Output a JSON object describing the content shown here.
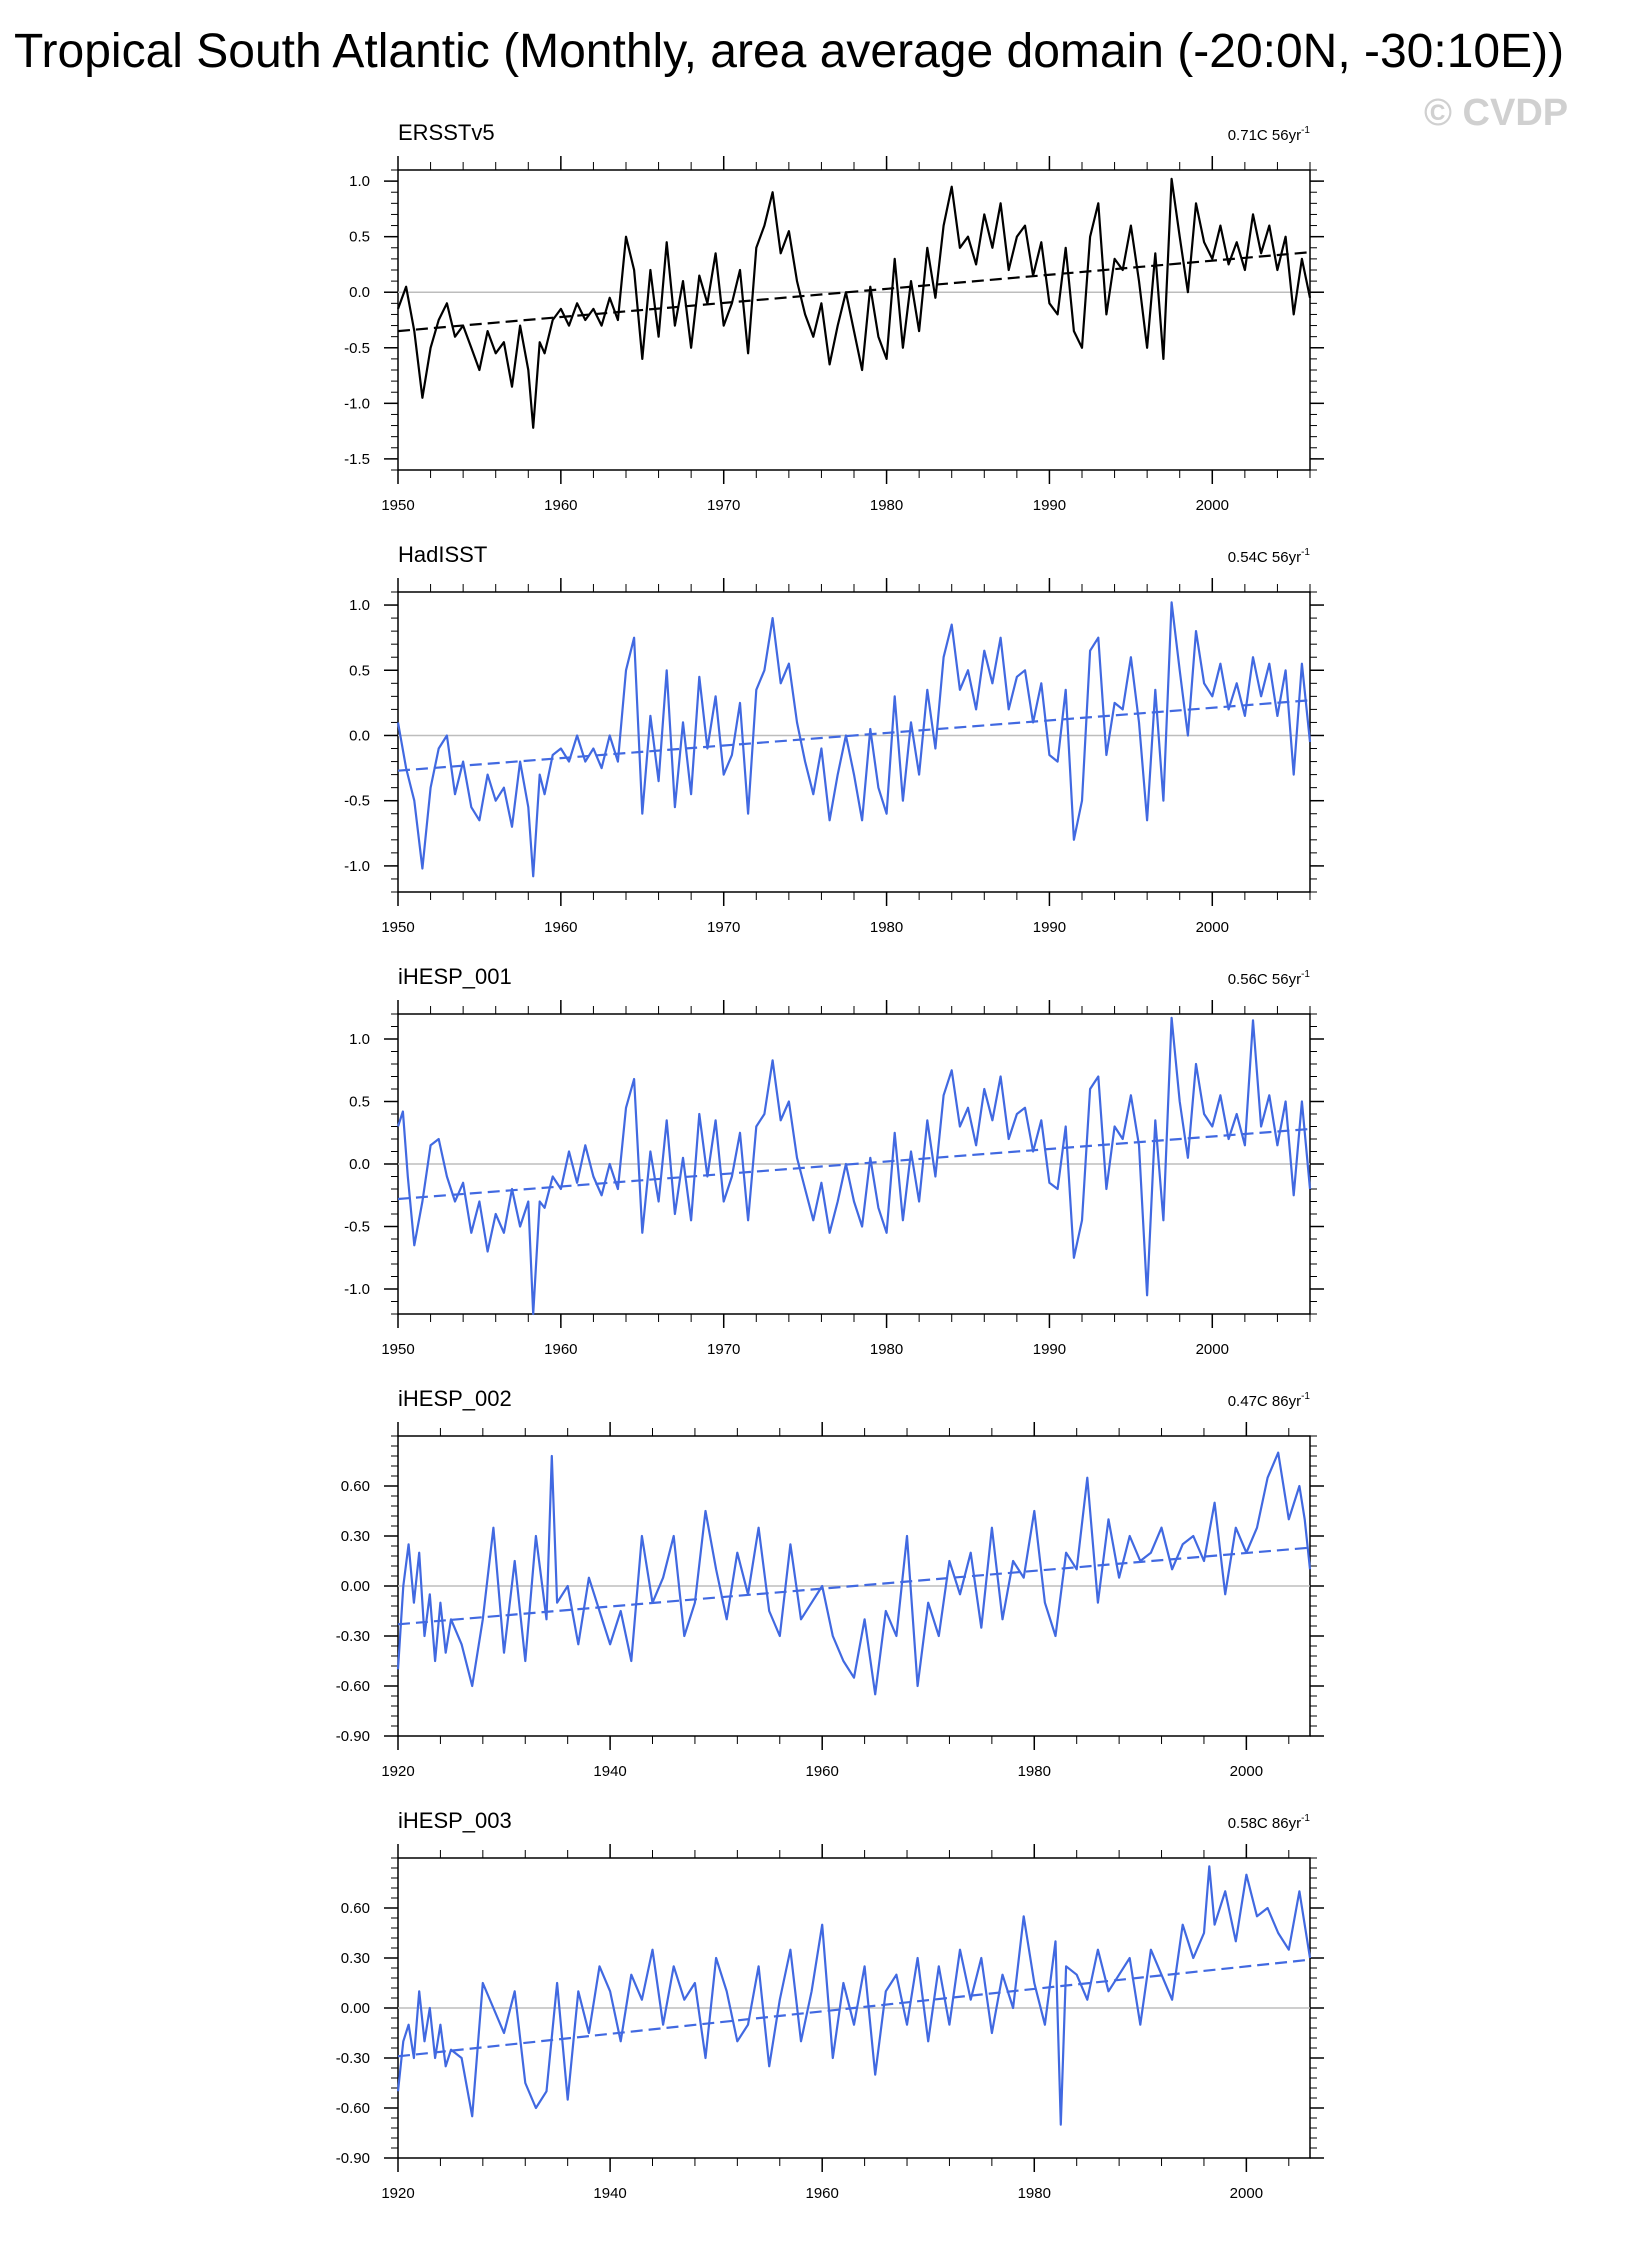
{
  "title": "Tropical South Atlantic (Monthly, area average domain (-20:0N, -30:10E))",
  "watermark": "© CVDP",
  "colors": {
    "black": "#000000",
    "blue": "#4169e1",
    "zero_line": "#bdbdbd"
  },
  "chart_data": [
    {
      "type": "line",
      "title": "ERSSTv5",
      "trend_value": "0.71C 56yr",
      "trend_exp": "-1",
      "color": "black",
      "xlim": [
        1950,
        2006
      ],
      "ylim": [
        -1.6,
        1.1
      ],
      "xticks": [
        1950,
        1960,
        1970,
        1980,
        1990,
        2000
      ],
      "yticks": [
        -1.5,
        -1.0,
        -0.5,
        0.0,
        0.5,
        1.0
      ],
      "yticklabels": [
        "-1.5",
        "-1.0",
        "-0.5",
        "0.0",
        "0.5",
        "1.0"
      ],
      "trend": [
        [
          1950,
          -0.35
        ],
        [
          2006,
          0.36
        ]
      ],
      "x": [
        1950.0,
        1950.5,
        1951.0,
        1951.5,
        1952.0,
        1952.5,
        1953.0,
        1953.5,
        1954.0,
        1954.5,
        1955.0,
        1955.5,
        1956.0,
        1956.5,
        1957.0,
        1957.5,
        1958.0,
        1958.3,
        1958.7,
        1959.0,
        1959.5,
        1960.0,
        1960.5,
        1961.0,
        1961.5,
        1962.0,
        1962.5,
        1963.0,
        1963.5,
        1964.0,
        1964.5,
        1965.0,
        1965.5,
        1966.0,
        1966.5,
        1967.0,
        1967.5,
        1968.0,
        1968.5,
        1969.0,
        1969.5,
        1970.0,
        1970.5,
        1971.0,
        1971.5,
        1972.0,
        1972.5,
        1973.0,
        1973.5,
        1974.0,
        1974.5,
        1975.0,
        1975.5,
        1976.0,
        1976.5,
        1977.0,
        1977.5,
        1978.0,
        1978.5,
        1979.0,
        1979.5,
        1980.0,
        1980.5,
        1981.0,
        1981.5,
        1982.0,
        1982.5,
        1983.0,
        1983.5,
        1984.0,
        1984.5,
        1985.0,
        1985.5,
        1986.0,
        1986.5,
        1987.0,
        1987.5,
        1988.0,
        1988.5,
        1989.0,
        1989.5,
        1990.0,
        1990.5,
        1991.0,
        1991.5,
        1992.0,
        1992.5,
        1993.0,
        1993.5,
        1994.0,
        1994.5,
        1995.0,
        1995.5,
        1996.0,
        1996.5,
        1997.0,
        1997.5,
        1998.0,
        1998.5,
        1999.0,
        1999.5,
        2000.0,
        2000.5,
        2001.0,
        2001.5,
        2002.0,
        2002.5,
        2003.0,
        2003.5,
        2004.0,
        2004.5,
        2005.0,
        2005.5,
        2006.0
      ],
      "y": [
        -0.15,
        0.05,
        -0.35,
        -0.95,
        -0.5,
        -0.25,
        -0.1,
        -0.4,
        -0.3,
        -0.5,
        -0.7,
        -0.35,
        -0.55,
        -0.45,
        -0.85,
        -0.3,
        -0.7,
        -1.22,
        -0.45,
        -0.55,
        -0.25,
        -0.15,
        -0.3,
        -0.1,
        -0.25,
        -0.15,
        -0.3,
        -0.05,
        -0.25,
        0.5,
        0.2,
        -0.6,
        0.2,
        -0.4,
        0.45,
        -0.3,
        0.1,
        -0.5,
        0.15,
        -0.1,
        0.35,
        -0.3,
        -0.1,
        0.2,
        -0.55,
        0.4,
        0.6,
        0.9,
        0.35,
        0.55,
        0.1,
        -0.2,
        -0.4,
        -0.1,
        -0.65,
        -0.3,
        0.0,
        -0.35,
        -0.7,
        0.05,
        -0.4,
        -0.6,
        0.3,
        -0.5,
        0.1,
        -0.35,
        0.4,
        -0.05,
        0.6,
        0.95,
        0.4,
        0.5,
        0.25,
        0.7,
        0.4,
        0.8,
        0.2,
        0.5,
        0.6,
        0.15,
        0.45,
        -0.1,
        -0.2,
        0.4,
        -0.35,
        -0.5,
        0.5,
        0.8,
        -0.2,
        0.3,
        0.2,
        0.6,
        0.1,
        -0.5,
        0.35,
        -0.6,
        1.02,
        0.5,
        0.0,
        0.8,
        0.45,
        0.3,
        0.6,
        0.25,
        0.45,
        0.2,
        0.7,
        0.35,
        0.6,
        0.2,
        0.5,
        -0.2,
        0.3,
        -0.05
      ],
      "zero": 0.0
    },
    {
      "type": "line",
      "title": "HadISST",
      "trend_value": "0.54C 56yr",
      "trend_exp": "-1",
      "color": "blue",
      "xlim": [
        1950,
        2006
      ],
      "ylim": [
        -1.2,
        1.1
      ],
      "xticks": [
        1950,
        1960,
        1970,
        1980,
        1990,
        2000
      ],
      "yticks": [
        -1.0,
        -0.5,
        0.0,
        0.5,
        1.0
      ],
      "yticklabels": [
        "-1.0",
        "-0.5",
        "0.0",
        "0.5",
        "1.0"
      ],
      "trend": [
        [
          1950,
          -0.27
        ],
        [
          2006,
          0.27
        ]
      ],
      "x": [
        1950.0,
        1950.5,
        1951.0,
        1951.5,
        1952.0,
        1952.5,
        1953.0,
        1953.5,
        1954.0,
        1954.5,
        1955.0,
        1955.5,
        1956.0,
        1956.5,
        1957.0,
        1957.5,
        1958.0,
        1958.3,
        1958.7,
        1959.0,
        1959.5,
        1960.0,
        1960.5,
        1961.0,
        1961.5,
        1962.0,
        1962.5,
        1963.0,
        1963.5,
        1964.0,
        1964.5,
        1965.0,
        1965.5,
        1966.0,
        1966.5,
        1967.0,
        1967.5,
        1968.0,
        1968.5,
        1969.0,
        1969.5,
        1970.0,
        1970.5,
        1971.0,
        1971.5,
        1972.0,
        1972.5,
        1973.0,
        1973.5,
        1974.0,
        1974.5,
        1975.0,
        1975.5,
        1976.0,
        1976.5,
        1977.0,
        1977.5,
        1978.0,
        1978.5,
        1979.0,
        1979.5,
        1980.0,
        1980.5,
        1981.0,
        1981.5,
        1982.0,
        1982.5,
        1983.0,
        1983.5,
        1984.0,
        1984.5,
        1985.0,
        1985.5,
        1986.0,
        1986.5,
        1987.0,
        1987.5,
        1988.0,
        1988.5,
        1989.0,
        1989.5,
        1990.0,
        1990.5,
        1991.0,
        1991.5,
        1992.0,
        1992.5,
        1993.0,
        1993.5,
        1994.0,
        1994.5,
        1995.0,
        1995.5,
        1996.0,
        1996.5,
        1997.0,
        1997.5,
        1998.0,
        1998.5,
        1999.0,
        1999.5,
        2000.0,
        2000.5,
        2001.0,
        2001.5,
        2002.0,
        2002.5,
        2003.0,
        2003.5,
        2004.0,
        2004.5,
        2005.0,
        2005.5,
        2006.0
      ],
      "y": [
        0.1,
        -0.25,
        -0.5,
        -1.02,
        -0.4,
        -0.1,
        0.0,
        -0.45,
        -0.2,
        -0.55,
        -0.65,
        -0.3,
        -0.5,
        -0.4,
        -0.7,
        -0.2,
        -0.55,
        -1.08,
        -0.3,
        -0.45,
        -0.15,
        -0.1,
        -0.2,
        0.0,
        -0.2,
        -0.1,
        -0.25,
        0.0,
        -0.2,
        0.5,
        0.75,
        -0.6,
        0.15,
        -0.35,
        0.5,
        -0.55,
        0.1,
        -0.45,
        0.45,
        -0.1,
        0.3,
        -0.3,
        -0.15,
        0.25,
        -0.6,
        0.35,
        0.5,
        0.9,
        0.4,
        0.55,
        0.1,
        -0.2,
        -0.45,
        -0.1,
        -0.65,
        -0.3,
        0.0,
        -0.3,
        -0.65,
        0.05,
        -0.4,
        -0.6,
        0.3,
        -0.5,
        0.1,
        -0.3,
        0.35,
        -0.1,
        0.6,
        0.85,
        0.35,
        0.5,
        0.2,
        0.65,
        0.4,
        0.75,
        0.2,
        0.45,
        0.5,
        0.1,
        0.4,
        -0.15,
        -0.2,
        0.35,
        -0.8,
        -0.5,
        0.65,
        0.75,
        -0.15,
        0.25,
        0.2,
        0.6,
        0.1,
        -0.65,
        0.35,
        -0.5,
        1.02,
        0.5,
        0.0,
        0.8,
        0.4,
        0.3,
        0.55,
        0.2,
        0.4,
        0.15,
        0.6,
        0.3,
        0.55,
        0.15,
        0.5,
        -0.3,
        0.55,
        -0.05
      ],
      "zero": 0.0
    },
    {
      "type": "line",
      "title": "iHESP_001",
      "trend_value": "0.56C 56yr",
      "trend_exp": "-1",
      "color": "blue",
      "xlim": [
        1950,
        2006
      ],
      "ylim": [
        -1.2,
        1.2
      ],
      "xticks": [
        1950,
        1960,
        1970,
        1980,
        1990,
        2000
      ],
      "yticks": [
        -1.0,
        -0.5,
        0.0,
        0.5,
        1.0
      ],
      "yticklabels": [
        "-1.0",
        "-0.5",
        "0.0",
        "0.5",
        "1.0"
      ],
      "trend": [
        [
          1950,
          -0.28
        ],
        [
          2006,
          0.28
        ]
      ],
      "x": [
        1950.0,
        1950.3,
        1950.6,
        1951.0,
        1951.5,
        1952.0,
        1952.5,
        1953.0,
        1953.5,
        1954.0,
        1954.5,
        1955.0,
        1955.5,
        1956.0,
        1956.5,
        1957.0,
        1957.5,
        1958.0,
        1958.3,
        1958.7,
        1959.0,
        1959.5,
        1960.0,
        1960.5,
        1961.0,
        1961.5,
        1962.0,
        1962.5,
        1963.0,
        1963.5,
        1964.0,
        1964.5,
        1965.0,
        1965.5,
        1966.0,
        1966.5,
        1967.0,
        1967.5,
        1968.0,
        1968.5,
        1969.0,
        1969.5,
        1970.0,
        1970.5,
        1971.0,
        1971.5,
        1972.0,
        1972.5,
        1973.0,
        1973.5,
        1974.0,
        1974.5,
        1975.0,
        1975.5,
        1976.0,
        1976.5,
        1977.0,
        1977.5,
        1978.0,
        1978.5,
        1979.0,
        1979.5,
        1980.0,
        1980.5,
        1981.0,
        1981.5,
        1982.0,
        1982.5,
        1983.0,
        1983.5,
        1984.0,
        1984.5,
        1985.0,
        1985.5,
        1986.0,
        1986.5,
        1987.0,
        1987.5,
        1988.0,
        1988.5,
        1989.0,
        1989.5,
        1990.0,
        1990.5,
        1991.0,
        1991.5,
        1992.0,
        1992.5,
        1993.0,
        1993.5,
        1994.0,
        1994.5,
        1995.0,
        1995.5,
        1996.0,
        1996.5,
        1997.0,
        1997.5,
        1998.0,
        1998.5,
        1999.0,
        1999.5,
        2000.0,
        2000.5,
        2001.0,
        2001.5,
        2002.0,
        2002.5,
        2003.0,
        2003.5,
        2004.0,
        2004.5,
        2005.0,
        2005.5,
        2006.0
      ],
      "y": [
        0.3,
        0.42,
        -0.1,
        -0.65,
        -0.3,
        0.15,
        0.2,
        -0.1,
        -0.3,
        -0.15,
        -0.55,
        -0.3,
        -0.7,
        -0.4,
        -0.55,
        -0.2,
        -0.5,
        -0.3,
        -1.2,
        -0.3,
        -0.35,
        -0.1,
        -0.2,
        0.1,
        -0.15,
        0.15,
        -0.1,
        -0.25,
        0.0,
        -0.2,
        0.45,
        0.68,
        -0.55,
        0.1,
        -0.3,
        0.35,
        -0.4,
        0.05,
        -0.45,
        0.4,
        -0.1,
        0.35,
        -0.3,
        -0.1,
        0.25,
        -0.45,
        0.3,
        0.4,
        0.83,
        0.35,
        0.5,
        0.05,
        -0.2,
        -0.45,
        -0.15,
        -0.55,
        -0.3,
        0.0,
        -0.3,
        -0.5,
        0.05,
        -0.35,
        -0.55,
        0.25,
        -0.45,
        0.1,
        -0.3,
        0.35,
        -0.1,
        0.55,
        0.75,
        0.3,
        0.45,
        0.15,
        0.6,
        0.35,
        0.7,
        0.2,
        0.4,
        0.45,
        0.1,
        0.35,
        -0.15,
        -0.2,
        0.3,
        -0.75,
        -0.45,
        0.6,
        0.7,
        -0.2,
        0.3,
        0.2,
        0.55,
        0.15,
        -1.05,
        0.35,
        -0.45,
        1.17,
        0.5,
        0.05,
        0.8,
        0.4,
        0.3,
        0.55,
        0.2,
        0.4,
        0.15,
        1.15,
        0.3,
        0.55,
        0.15,
        0.5,
        -0.25,
        0.5,
        -0.2
      ],
      "zero": 0.0
    },
    {
      "type": "line",
      "title": "iHESP_002",
      "trend_value": "0.47C 86yr",
      "trend_exp": "-1",
      "color": "blue",
      "xlim": [
        1920,
        2006
      ],
      "ylim": [
        -0.9,
        0.9
      ],
      "xticks": [
        1920,
        1940,
        1960,
        1980,
        2000
      ],
      "yticks": [
        -0.9,
        -0.6,
        -0.3,
        0.0,
        0.3,
        0.6
      ],
      "yticklabels": [
        "-0.90",
        "-0.60",
        "-0.30",
        "0.00",
        "0.30",
        "0.60"
      ],
      "trend": [
        [
          1920,
          -0.23
        ],
        [
          2006,
          0.23
        ]
      ],
      "x": [
        1920.0,
        1920.5,
        1921.0,
        1921.5,
        1922.0,
        1922.5,
        1923.0,
        1923.5,
        1924.0,
        1924.5,
        1925.0,
        1926.0,
        1927.0,
        1928.0,
        1929.0,
        1930.0,
        1931.0,
        1932.0,
        1933.0,
        1934.0,
        1934.5,
        1935.0,
        1936.0,
        1937.0,
        1938.0,
        1939.0,
        1940.0,
        1941.0,
        1942.0,
        1943.0,
        1944.0,
        1945.0,
        1946.0,
        1947.0,
        1948.0,
        1949.0,
        1950.0,
        1951.0,
        1952.0,
        1953.0,
        1954.0,
        1955.0,
        1956.0,
        1957.0,
        1958.0,
        1959.0,
        1960.0,
        1961.0,
        1962.0,
        1963.0,
        1964.0,
        1965.0,
        1966.0,
        1967.0,
        1968.0,
        1969.0,
        1970.0,
        1971.0,
        1972.0,
        1973.0,
        1974.0,
        1975.0,
        1976.0,
        1977.0,
        1978.0,
        1979.0,
        1980.0,
        1981.0,
        1982.0,
        1983.0,
        1984.0,
        1985.0,
        1986.0,
        1987.0,
        1988.0,
        1989.0,
        1990.0,
        1991.0,
        1992.0,
        1993.0,
        1994.0,
        1995.0,
        1996.0,
        1997.0,
        1998.0,
        1999.0,
        2000.0,
        2001.0,
        2002.0,
        2003.0,
        2004.0,
        2005.0,
        2005.5,
        2006.0
      ],
      "y": [
        -0.5,
        0.0,
        0.25,
        -0.1,
        0.2,
        -0.3,
        -0.05,
        -0.45,
        -0.1,
        -0.4,
        -0.2,
        -0.35,
        -0.6,
        -0.2,
        0.35,
        -0.4,
        0.15,
        -0.45,
        0.3,
        -0.2,
        0.78,
        -0.1,
        0.0,
        -0.35,
        0.05,
        -0.15,
        -0.35,
        -0.15,
        -0.45,
        0.3,
        -0.1,
        0.05,
        0.3,
        -0.3,
        -0.1,
        0.45,
        0.1,
        -0.2,
        0.2,
        -0.05,
        0.35,
        -0.15,
        -0.3,
        0.25,
        -0.2,
        -0.1,
        0.0,
        -0.3,
        -0.45,
        -0.55,
        -0.2,
        -0.65,
        -0.15,
        -0.3,
        0.3,
        -0.6,
        -0.1,
        -0.3,
        0.15,
        -0.05,
        0.2,
        -0.25,
        0.35,
        -0.2,
        0.15,
        0.05,
        0.45,
        -0.1,
        -0.3,
        0.2,
        0.1,
        0.65,
        -0.1,
        0.4,
        0.05,
        0.3,
        0.15,
        0.2,
        0.35,
        0.1,
        0.25,
        0.3,
        0.15,
        0.5,
        -0.05,
        0.35,
        0.2,
        0.35,
        0.65,
        0.8,
        0.4,
        0.6,
        0.4,
        0.1
      ],
      "zero": 0.0
    },
    {
      "type": "line",
      "title": "iHESP_003",
      "trend_value": "0.58C 86yr",
      "trend_exp": "-1",
      "color": "blue",
      "xlim": [
        1920,
        2006
      ],
      "ylim": [
        -0.9,
        0.9
      ],
      "xticks": [
        1920,
        1940,
        1960,
        1980,
        2000
      ],
      "yticks": [
        -0.9,
        -0.6,
        -0.3,
        0.0,
        0.3,
        0.6
      ],
      "yticklabels": [
        "-0.90",
        "-0.60",
        "-0.30",
        "0.00",
        "0.30",
        "0.60"
      ],
      "trend": [
        [
          1920,
          -0.29
        ],
        [
          2006,
          0.29
        ]
      ],
      "x": [
        1920.0,
        1920.5,
        1921.0,
        1921.5,
        1922.0,
        1922.5,
        1923.0,
        1923.5,
        1924.0,
        1924.5,
        1925.0,
        1926.0,
        1927.0,
        1928.0,
        1929.0,
        1930.0,
        1931.0,
        1932.0,
        1933.0,
        1934.0,
        1935.0,
        1936.0,
        1937.0,
        1938.0,
        1939.0,
        1940.0,
        1941.0,
        1942.0,
        1943.0,
        1944.0,
        1945.0,
        1946.0,
        1947.0,
        1948.0,
        1949.0,
        1950.0,
        1951.0,
        1952.0,
        1953.0,
        1954.0,
        1955.0,
        1956.0,
        1957.0,
        1958.0,
        1959.0,
        1960.0,
        1961.0,
        1962.0,
        1963.0,
        1964.0,
        1965.0,
        1966.0,
        1967.0,
        1968.0,
        1969.0,
        1970.0,
        1971.0,
        1972.0,
        1973.0,
        1974.0,
        1975.0,
        1976.0,
        1977.0,
        1978.0,
        1979.0,
        1980.0,
        1981.0,
        1982.0,
        1982.5,
        1983.0,
        1984.0,
        1985.0,
        1986.0,
        1987.0,
        1988.0,
        1989.0,
        1990.0,
        1991.0,
        1992.0,
        1993.0,
        1994.0,
        1995.0,
        1996.0,
        1996.5,
        1997.0,
        1998.0,
        1999.0,
        2000.0,
        2001.0,
        2002.0,
        2003.0,
        2004.0,
        2005.0,
        2005.5,
        2006.0
      ],
      "y": [
        -0.5,
        -0.2,
        -0.1,
        -0.3,
        0.1,
        -0.2,
        0.0,
        -0.3,
        -0.1,
        -0.35,
        -0.25,
        -0.3,
        -0.65,
        0.15,
        0.0,
        -0.15,
        0.1,
        -0.45,
        -0.6,
        -0.5,
        0.15,
        -0.55,
        0.1,
        -0.15,
        0.25,
        0.1,
        -0.2,
        0.2,
        0.05,
        0.35,
        -0.1,
        0.25,
        0.05,
        0.15,
        -0.3,
        0.3,
        0.1,
        -0.2,
        -0.1,
        0.25,
        -0.35,
        0.05,
        0.35,
        -0.2,
        0.1,
        0.5,
        -0.3,
        0.15,
        -0.1,
        0.25,
        -0.4,
        0.1,
        0.2,
        -0.1,
        0.3,
        -0.2,
        0.25,
        -0.1,
        0.35,
        0.05,
        0.3,
        -0.15,
        0.2,
        0.0,
        0.55,
        0.15,
        -0.1,
        0.4,
        -0.7,
        0.25,
        0.2,
        0.05,
        0.35,
        0.1,
        0.2,
        0.3,
        -0.1,
        0.35,
        0.2,
        0.05,
        0.5,
        0.3,
        0.45,
        0.85,
        0.5,
        0.7,
        0.4,
        0.8,
        0.55,
        0.6,
        0.45,
        0.35,
        0.7,
        0.5,
        0.3
      ],
      "zero": 0.0
    }
  ]
}
